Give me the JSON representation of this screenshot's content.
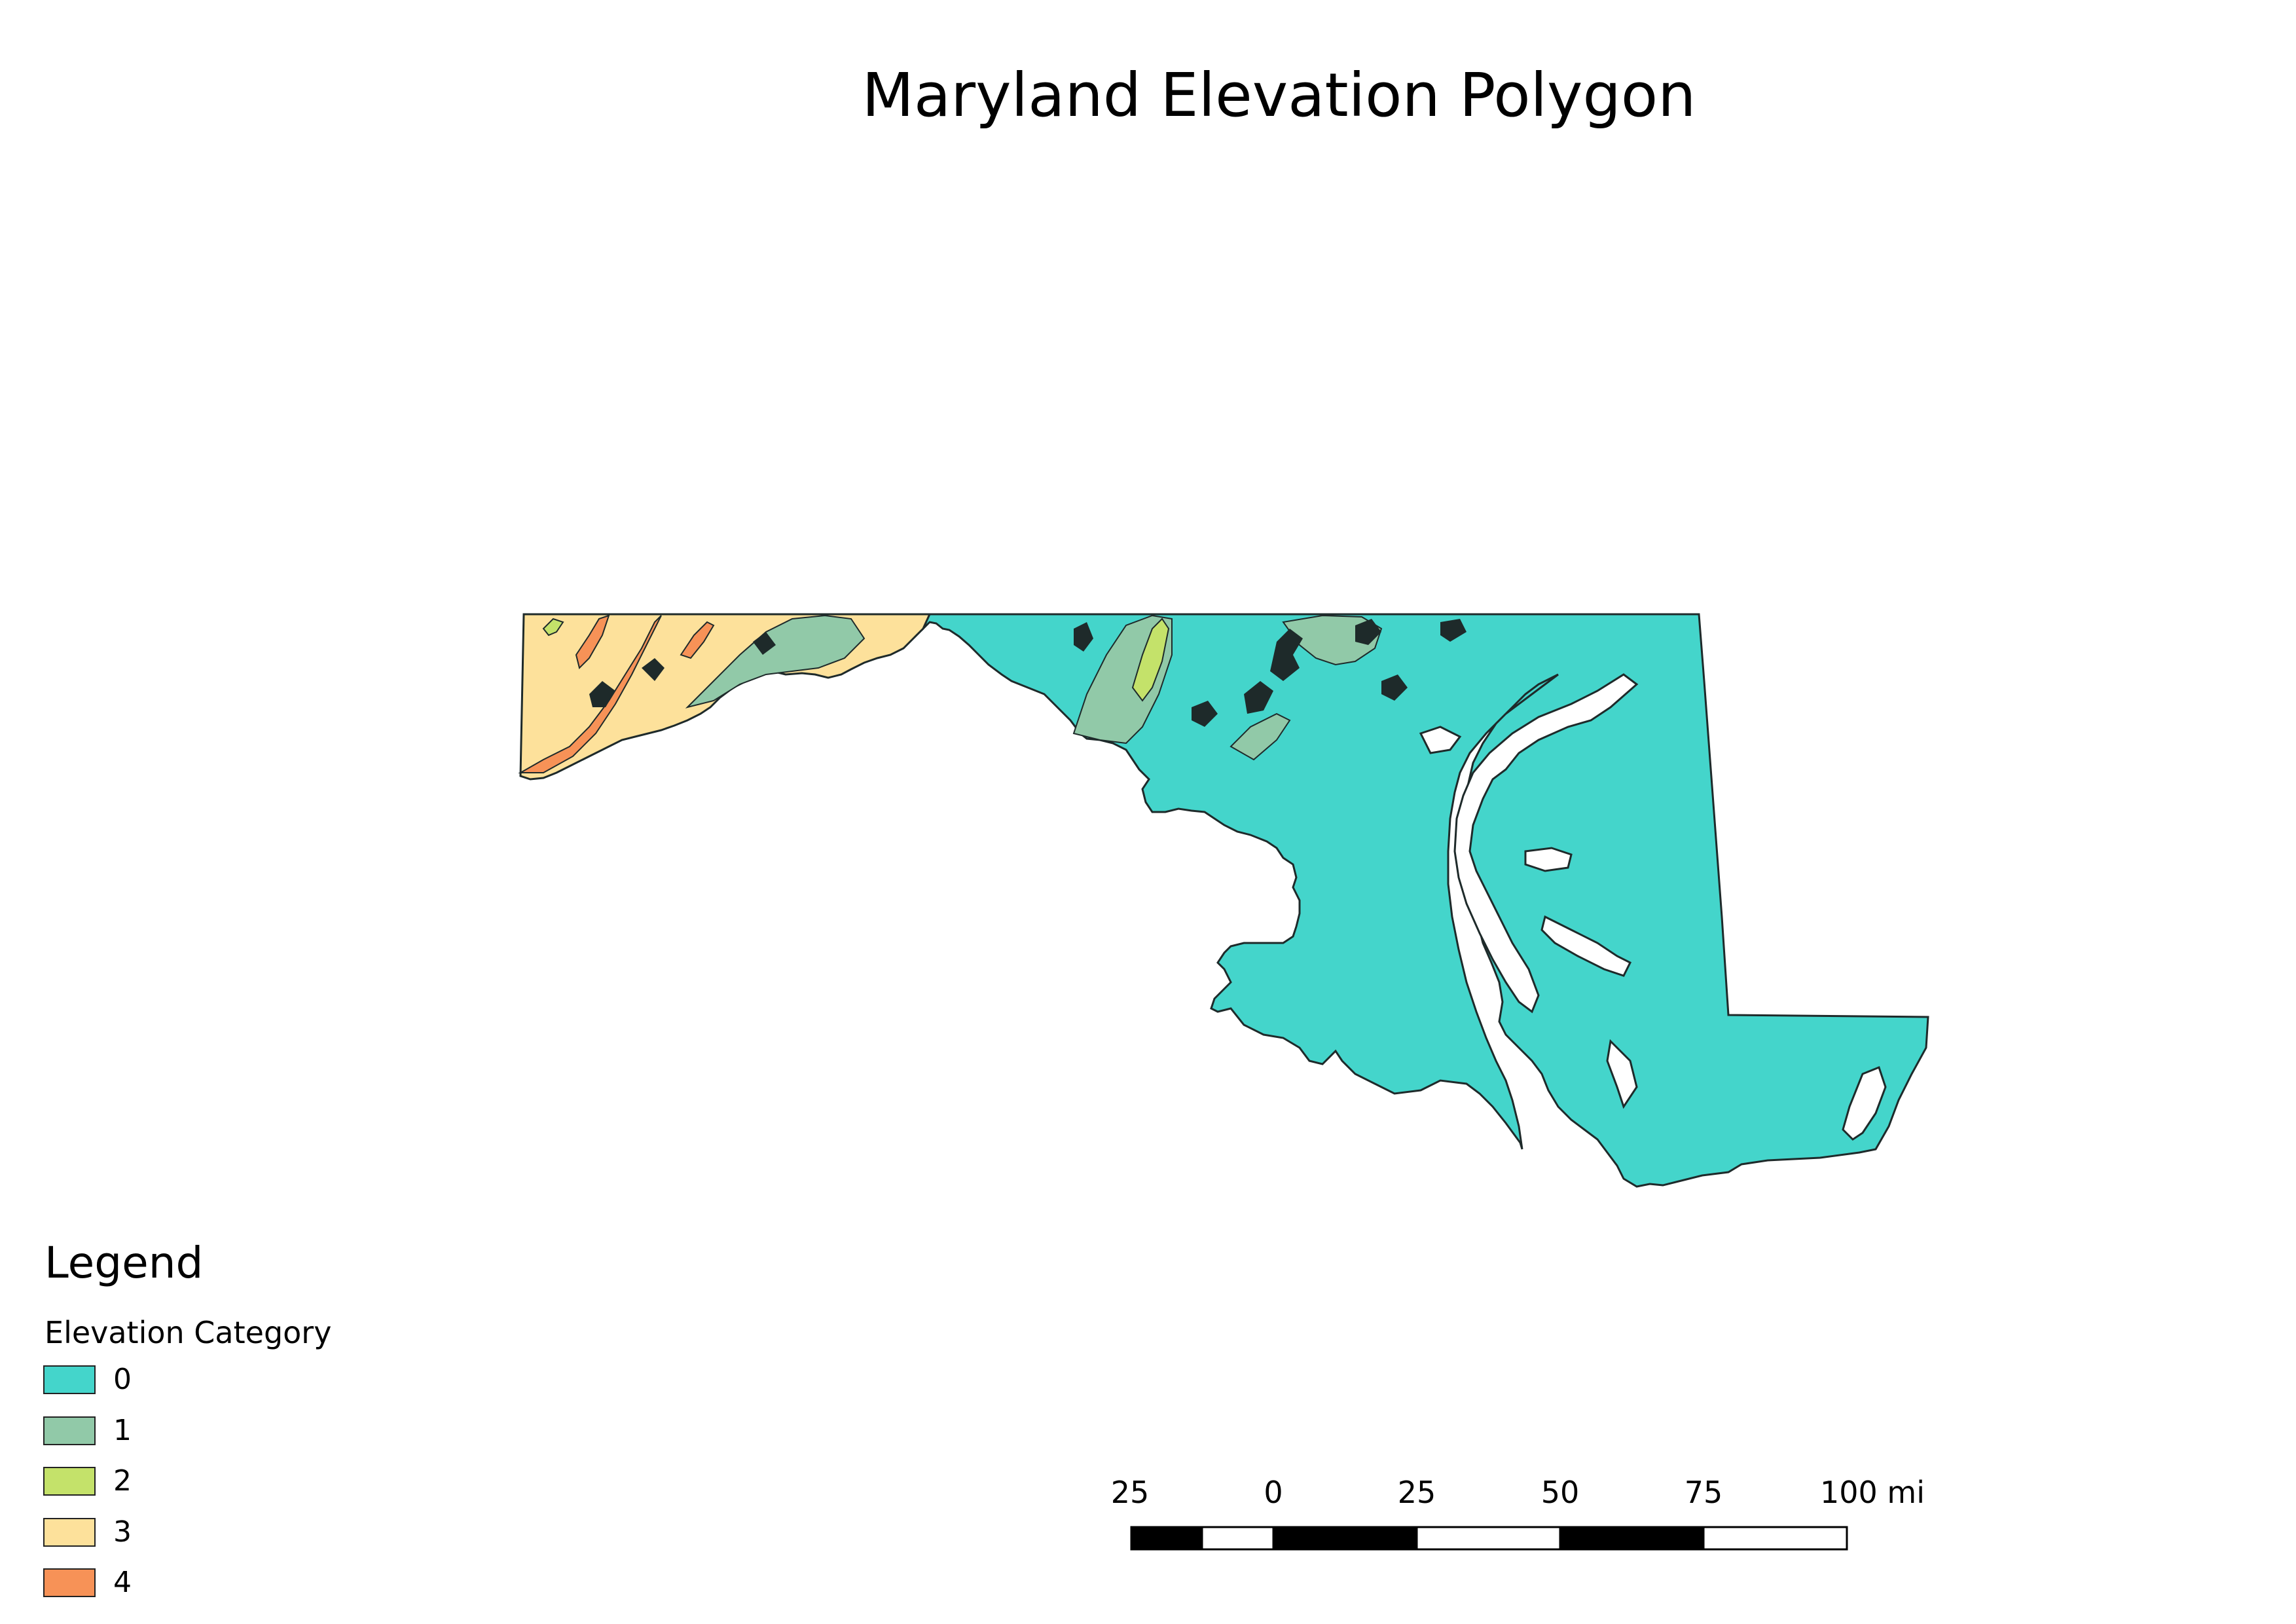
{
  "map": {
    "title": "Maryland Elevation Polygon",
    "fill_colors": {
      "category_0": "#44d5cb",
      "category_1": "#91c9a8",
      "category_2": "#c4e26a",
      "category_3": "#fde19b",
      "category_4": "#f79257",
      "outline": "#1e2a2a"
    }
  },
  "legend": {
    "title": "Legend",
    "subtitle": "Elevation Category",
    "items": [
      {
        "label": "0",
        "color": "#44d5cb"
      },
      {
        "label": "1",
        "color": "#91c9a8"
      },
      {
        "label": "2",
        "color": "#c4e26a"
      },
      {
        "label": "3",
        "color": "#fde19b"
      },
      {
        "label": "4",
        "color": "#f79257"
      }
    ]
  },
  "scale_bar": {
    "labels": [
      "25",
      "0",
      "25",
      "50",
      "75",
      "100 mi"
    ],
    "unit": "mi"
  }
}
